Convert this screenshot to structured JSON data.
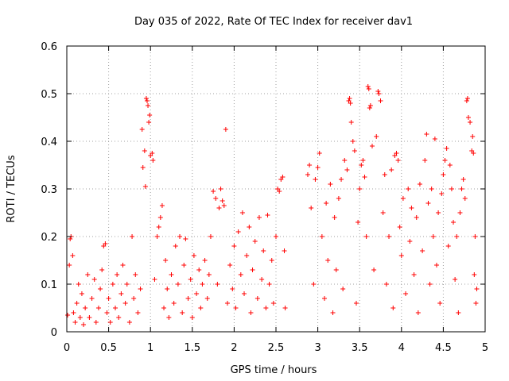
{
  "chart_data": {
    "type": "scatter",
    "title": "Day 035 of 2022, Rate Of TEC Index for receiver dav1",
    "xlabel": "GPS time / hours",
    "ylabel": "ROTI / TECUs",
    "xlim": [
      0,
      5
    ],
    "ylim": [
      0,
      0.6
    ],
    "xticks": [
      {
        "v": 0,
        "label": "0"
      },
      {
        "v": 0.5,
        "label": "0.5"
      },
      {
        "v": 1,
        "label": "1"
      },
      {
        "v": 1.5,
        "label": "1.5"
      },
      {
        "v": 2,
        "label": "2"
      },
      {
        "v": 2.5,
        "label": "2.5"
      },
      {
        "v": 3,
        "label": "3"
      },
      {
        "v": 3.5,
        "label": "3.5"
      },
      {
        "v": 4,
        "label": "4"
      },
      {
        "v": 4.5,
        "label": "4.5"
      },
      {
        "v": 5,
        "label": "5"
      }
    ],
    "yticks": [
      {
        "v": 0,
        "label": "0"
      },
      {
        "v": 0.1,
        "label": "0.1"
      },
      {
        "v": 0.2,
        "label": "0.2"
      },
      {
        "v": 0.3,
        "label": "0.3"
      },
      {
        "v": 0.4,
        "label": "0.4"
      },
      {
        "v": 0.5,
        "label": "0.5"
      },
      {
        "v": 0.6,
        "label": "0.6"
      }
    ],
    "grid": true,
    "marker": "plus",
    "color": "#ff0000",
    "data_gap": [
      2.62,
      2.85
    ],
    "points": [
      [
        0.01,
        0.035
      ],
      [
        0.03,
        0.14
      ],
      [
        0.04,
        0.195
      ],
      [
        0.05,
        0.2
      ],
      [
        0.07,
        0.16
      ],
      [
        0.08,
        0.04
      ],
      [
        0.1,
        0.02
      ],
      [
        0.12,
        0.06
      ],
      [
        0.14,
        0.1
      ],
      [
        0.16,
        0.03
      ],
      [
        0.18,
        0.08
      ],
      [
        0.2,
        0.015
      ],
      [
        0.22,
        0.05
      ],
      [
        0.25,
        0.12
      ],
      [
        0.27,
        0.03
      ],
      [
        0.3,
        0.07
      ],
      [
        0.33,
        0.11
      ],
      [
        0.35,
        0.02
      ],
      [
        0.38,
        0.05
      ],
      [
        0.4,
        0.09
      ],
      [
        0.42,
        0.13
      ],
      [
        0.44,
        0.18
      ],
      [
        0.46,
        0.185
      ],
      [
        0.48,
        0.04
      ],
      [
        0.5,
        0.07
      ],
      [
        0.52,
        0.02
      ],
      [
        0.55,
        0.1
      ],
      [
        0.58,
        0.05
      ],
      [
        0.6,
        0.12
      ],
      [
        0.62,
        0.03
      ],
      [
        0.65,
        0.08
      ],
      [
        0.67,
        0.14
      ],
      [
        0.7,
        0.06
      ],
      [
        0.72,
        0.1
      ],
      [
        0.75,
        0.02
      ],
      [
        0.78,
        0.2
      ],
      [
        0.8,
        0.07
      ],
      [
        0.82,
        0.12
      ],
      [
        0.85,
        0.04
      ],
      [
        0.88,
        0.09
      ],
      [
        0.9,
        0.425
      ],
      [
        0.91,
        0.345
      ],
      [
        0.93,
        0.38
      ],
      [
        0.94,
        0.305
      ],
      [
        0.95,
        0.49
      ],
      [
        0.96,
        0.485
      ],
      [
        0.97,
        0.475
      ],
      [
        0.98,
        0.44
      ],
      [
        0.99,
        0.455
      ],
      [
        1.0,
        0.37
      ],
      [
        1.02,
        0.375
      ],
      [
        1.03,
        0.36
      ],
      [
        1.05,
        0.11
      ],
      [
        1.08,
        0.2
      ],
      [
        1.1,
        0.22
      ],
      [
        1.12,
        0.24
      ],
      [
        1.14,
        0.265
      ],
      [
        1.16,
        0.05
      ],
      [
        1.18,
        0.15
      ],
      [
        1.2,
        0.09
      ],
      [
        1.22,
        0.03
      ],
      [
        1.25,
        0.12
      ],
      [
        1.28,
        0.06
      ],
      [
        1.3,
        0.18
      ],
      [
        1.33,
        0.1
      ],
      [
        1.35,
        0.2
      ],
      [
        1.38,
        0.04
      ],
      [
        1.4,
        0.14
      ],
      [
        1.42,
        0.195
      ],
      [
        1.45,
        0.07
      ],
      [
        1.48,
        0.11
      ],
      [
        1.5,
        0.03
      ],
      [
        1.52,
        0.16
      ],
      [
        1.55,
        0.08
      ],
      [
        1.58,
        0.13
      ],
      [
        1.6,
        0.05
      ],
      [
        1.62,
        0.1
      ],
      [
        1.65,
        0.15
      ],
      [
        1.68,
        0.07
      ],
      [
        1.7,
        0.12
      ],
      [
        1.72,
        0.2
      ],
      [
        1.75,
        0.295
      ],
      [
        1.78,
        0.28
      ],
      [
        1.8,
        0.1
      ],
      [
        1.82,
        0.26
      ],
      [
        1.84,
        0.3
      ],
      [
        1.86,
        0.275
      ],
      [
        1.88,
        0.265
      ],
      [
        1.9,
        0.425
      ],
      [
        1.92,
        0.06
      ],
      [
        1.95,
        0.14
      ],
      [
        1.98,
        0.09
      ],
      [
        2.0,
        0.18
      ],
      [
        2.02,
        0.05
      ],
      [
        2.05,
        0.21
      ],
      [
        2.08,
        0.12
      ],
      [
        2.1,
        0.25
      ],
      [
        2.12,
        0.08
      ],
      [
        2.15,
        0.16
      ],
      [
        2.18,
        0.22
      ],
      [
        2.2,
        0.04
      ],
      [
        2.22,
        0.13
      ],
      [
        2.25,
        0.19
      ],
      [
        2.28,
        0.07
      ],
      [
        2.3,
        0.24
      ],
      [
        2.33,
        0.11
      ],
      [
        2.35,
        0.17
      ],
      [
        2.38,
        0.05
      ],
      [
        2.4,
        0.245
      ],
      [
        2.42,
        0.1
      ],
      [
        2.45,
        0.15
      ],
      [
        2.47,
        0.06
      ],
      [
        2.5,
        0.2
      ],
      [
        2.52,
        0.3
      ],
      [
        2.54,
        0.295
      ],
      [
        2.56,
        0.32
      ],
      [
        2.58,
        0.325
      ],
      [
        2.6,
        0.17
      ],
      [
        2.61,
        0.05
      ],
      [
        2.88,
        0.33
      ],
      [
        2.9,
        0.35
      ],
      [
        2.92,
        0.26
      ],
      [
        2.95,
        0.1
      ],
      [
        2.97,
        0.32
      ],
      [
        3.0,
        0.345
      ],
      [
        3.02,
        0.375
      ],
      [
        3.05,
        0.2
      ],
      [
        3.08,
        0.07
      ],
      [
        3.1,
        0.27
      ],
      [
        3.12,
        0.15
      ],
      [
        3.15,
        0.31
      ],
      [
        3.18,
        0.04
      ],
      [
        3.2,
        0.24
      ],
      [
        3.22,
        0.13
      ],
      [
        3.25,
        0.28
      ],
      [
        3.28,
        0.32
      ],
      [
        3.3,
        0.09
      ],
      [
        3.32,
        0.36
      ],
      [
        3.35,
        0.34
      ],
      [
        3.37,
        0.485
      ],
      [
        3.38,
        0.49
      ],
      [
        3.39,
        0.48
      ],
      [
        3.4,
        0.44
      ],
      [
        3.42,
        0.4
      ],
      [
        3.44,
        0.38
      ],
      [
        3.46,
        0.06
      ],
      [
        3.48,
        0.23
      ],
      [
        3.5,
        0.3
      ],
      [
        3.52,
        0.35
      ],
      [
        3.54,
        0.36
      ],
      [
        3.56,
        0.325
      ],
      [
        3.58,
        0.2
      ],
      [
        3.6,
        0.515
      ],
      [
        3.61,
        0.51
      ],
      [
        3.62,
        0.47
      ],
      [
        3.63,
        0.475
      ],
      [
        3.65,
        0.39
      ],
      [
        3.67,
        0.13
      ],
      [
        3.7,
        0.41
      ],
      [
        3.72,
        0.505
      ],
      [
        3.73,
        0.5
      ],
      [
        3.75,
        0.485
      ],
      [
        3.78,
        0.25
      ],
      [
        3.8,
        0.33
      ],
      [
        3.82,
        0.1
      ],
      [
        3.85,
        0.2
      ],
      [
        3.88,
        0.34
      ],
      [
        3.9,
        0.05
      ],
      [
        3.92,
        0.37
      ],
      [
        3.94,
        0.375
      ],
      [
        3.96,
        0.36
      ],
      [
        3.98,
        0.22
      ],
      [
        4.0,
        0.16
      ],
      [
        4.02,
        0.28
      ],
      [
        4.05,
        0.08
      ],
      [
        4.08,
        0.3
      ],
      [
        4.1,
        0.19
      ],
      [
        4.12,
        0.26
      ],
      [
        4.15,
        0.12
      ],
      [
        4.18,
        0.24
      ],
      [
        4.2,
        0.04
      ],
      [
        4.22,
        0.31
      ],
      [
        4.25,
        0.17
      ],
      [
        4.28,
        0.36
      ],
      [
        4.3,
        0.415
      ],
      [
        4.32,
        0.27
      ],
      [
        4.34,
        0.1
      ],
      [
        4.36,
        0.3
      ],
      [
        4.38,
        0.2
      ],
      [
        4.4,
        0.405
      ],
      [
        4.42,
        0.14
      ],
      [
        4.44,
        0.25
      ],
      [
        4.46,
        0.06
      ],
      [
        4.48,
        0.29
      ],
      [
        4.5,
        0.33
      ],
      [
        4.52,
        0.36
      ],
      [
        4.54,
        0.385
      ],
      [
        4.56,
        0.18
      ],
      [
        4.58,
        0.35
      ],
      [
        4.6,
        0.3
      ],
      [
        4.62,
        0.23
      ],
      [
        4.64,
        0.11
      ],
      [
        4.66,
        0.2
      ],
      [
        4.68,
        0.04
      ],
      [
        4.7,
        0.25
      ],
      [
        4.72,
        0.3
      ],
      [
        4.74,
        0.32
      ],
      [
        4.76,
        0.28
      ],
      [
        4.78,
        0.485
      ],
      [
        4.79,
        0.49
      ],
      [
        4.8,
        0.45
      ],
      [
        4.82,
        0.44
      ],
      [
        4.84,
        0.38
      ],
      [
        4.85,
        0.41
      ],
      [
        4.86,
        0.375
      ],
      [
        4.87,
        0.12
      ],
      [
        4.88,
        0.2
      ],
      [
        4.89,
        0.06
      ],
      [
        4.9,
        0.09
      ]
    ]
  }
}
